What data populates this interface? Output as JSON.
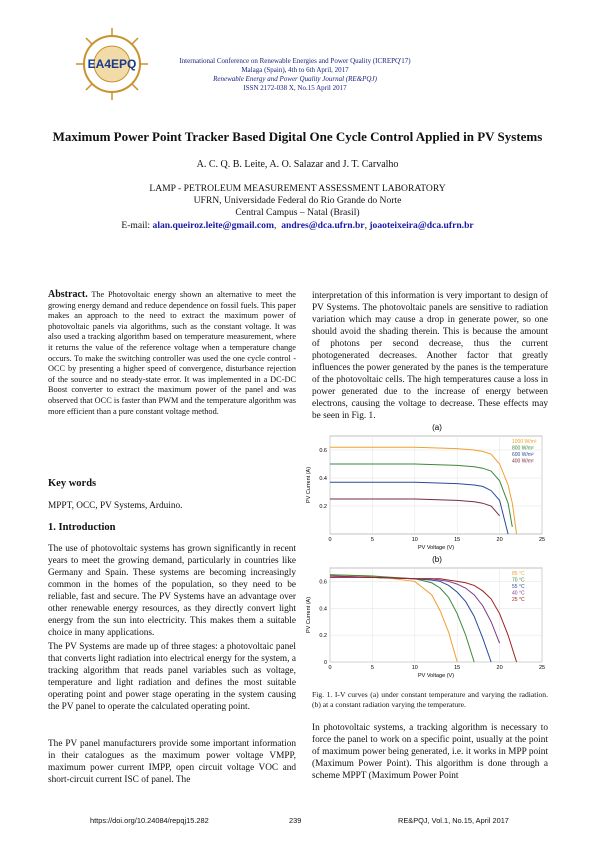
{
  "header": {
    "logo_text": "EA4EPQ",
    "conference": "International Conference on Renewable Energies and Power Quality (ICREPQ'17)",
    "place_date": "Malaga (Spain), 4th to 6th April, 2017",
    "journal": "Renewable Energy and Power Quality Journal (RE&PQJ)",
    "issn": "ISSN 2172-038 X, No.15 April 2017"
  },
  "title": "Maximum Power Point Tracker Based Digital One Cycle Control Applied in PV Systems",
  "authors": "A. C. Q. B. Leite, A. O. Salazar and J. T. Carvalho",
  "affiliation": [
    "LAMP - PETROLEUM MEASUREMENT ASSESSMENT LABORATORY",
    "UFRN, Universidade Federal do Rio Grande do Norte",
    "Central Campus – Natal (Brasil)"
  ],
  "email": {
    "label": "E-mail:",
    "addresses": [
      "alan.queiroz.leite@gmail.com",
      "andres@dca.ufrn.br",
      "joaoteixeira@dca.ufrn.br"
    ]
  },
  "abstract": {
    "label": "Abstract.",
    "text": "The Photovoltaic energy shown an alternative to meet the growing energy demand and reduce dependence on fossil fuels. This paper makes an approach to the need to extract the maximum power of photovoltaic panels via algorithms, such as the constant voltage. It was also used a tracking algorithm based on temperature measurement, where it returns the value of the reference voltage when a temperature change occurs. To make the switching controller was used the one cycle control - OCC by presenting a higher speed of convergence, disturbance rejection of the source and no steady-state error. It was implemented in a DC-DC Boost converter to extract the maximum power of the panel and was observed that OCC is faster than PWM and the temperature algorithm was more efficient than a pure constant voltage method."
  },
  "keywords": {
    "heading": "Key words",
    "text": "MPPT, OCC, PV Systems, Arduino."
  },
  "introduction": {
    "heading": "1.   Introduction",
    "paragraphs": [
      "The use of photovoltaic systems has grown significantly in recent years to meet the growing demand, particularly in countries like Germany and Spain. These systems are becoming increasingly common in the homes of the population, so they need to be reliable, fast and secure. The PV Systems have an advantage over other renewable energy resources, as they directly convert light energy from the sun into electricity. This makes them a suitable choice in many applications.",
      "The PV Systems are made up of three stages: a photovoltaic panel that converts light radiation into electrical energy for the system, a tracking algorithm that reads panel variables such as voltage, temperature and light radiation and defines the most suitable operating point and power stage operating in the system causing the PV panel to operate the calculated operating point.",
      "The PV panel manufacturers provide some important information in their catalogues as the maximum power voltage VMPP, maximum power current IMPP, open circuit voltage VOC and short-circuit current ISC of panel. The",
      "interpretation of this information is very important to design of PV Systems. The photovoltaic panels are sensitive to radiation variation which may cause a drop in generate power, so one should avoid the shading therein. This is because the amount of photons per second decrease, thus the current photogenerated decreases. Another factor that greatly influences the power generated by the panes is the temperature of the photovoltaic cells. The high temperatures cause a loss in power generated due to the increase of energy between electrons, causing the voltage to decrease. These effects may be seen in Fig. 1.",
      "In photovoltaic systems, a tracking algorithm is necessary to force the panel to work on a specific point, usually at the point of maximum power being generated, i.e. it works in MPP point (Maximum Power Point). This algorithm is done through a scheme MPPT (Maximum Power Point"
    ]
  },
  "figure_caption": "Fig. 1.  I-V curves (a) under constant temperature and varying the radiation. (b) at a constant radiation varying the temperature.",
  "chart_data": [
    {
      "type": "line",
      "panel_label": "(a)",
      "x_label": "PV Voltage (V)",
      "y_label": "PV Current (A)",
      "x": [
        0,
        5,
        10,
        15,
        17,
        18,
        19,
        20,
        21,
        21.5,
        22
      ],
      "series": [
        {
          "name": "1000 W/m²",
          "color": "#f0a030",
          "values": [
            0.62,
            0.62,
            0.62,
            0.61,
            0.6,
            0.59,
            0.57,
            0.5,
            0.35,
            0.22,
            0
          ]
        },
        {
          "name": "800 W/m²",
          "color": "#3a8a3a",
          "values": [
            0.5,
            0.5,
            0.5,
            0.49,
            0.48,
            0.47,
            0.45,
            0.38,
            0.22,
            0.05,
            null
          ]
        },
        {
          "name": "600 W/m²",
          "color": "#2a4a9a",
          "values": [
            0.37,
            0.37,
            0.37,
            0.36,
            0.35,
            0.34,
            0.31,
            0.24,
            0,
            null,
            null
          ]
        },
        {
          "name": "400 W/m²",
          "color": "#7a2a4a",
          "values": [
            0.25,
            0.25,
            0.25,
            0.24,
            0.23,
            0.22,
            0.2,
            0.13,
            null,
            null,
            null
          ]
        }
      ],
      "xlim": [
        0,
        25
      ],
      "xticks": [
        0,
        5,
        10,
        15,
        20,
        25
      ],
      "ylim": [
        0,
        0.7
      ],
      "yticks": [
        0.2,
        0.4,
        0.6
      ],
      "grid": true
    },
    {
      "type": "line",
      "panel_label": "(b)",
      "x_label": "PV Voltage (V)",
      "y_label": "PV Current (A)",
      "x": [
        0,
        5,
        10,
        12,
        13,
        14,
        15,
        16,
        17,
        18,
        19,
        20,
        21,
        22
      ],
      "series": [
        {
          "name": "85 °C",
          "color": "#f0a030",
          "values": [
            0.65,
            0.64,
            0.6,
            0.5,
            0.38,
            0.22,
            0,
            null,
            null,
            null,
            null,
            null,
            null,
            null
          ]
        },
        {
          "name": "70 °C",
          "color": "#3a8a3a",
          "values": [
            0.65,
            0.64,
            0.62,
            0.59,
            0.55,
            0.48,
            0.36,
            0.2,
            0,
            null,
            null,
            null,
            null,
            null
          ]
        },
        {
          "name": "55 °C",
          "color": "#2a4a9a",
          "values": [
            0.64,
            0.63,
            0.62,
            0.61,
            0.6,
            0.57,
            0.52,
            0.45,
            0.34,
            0.18,
            0,
            null,
            null,
            null
          ]
        },
        {
          "name": "40 °C",
          "color": "#7a3a8a",
          "values": [
            0.64,
            0.63,
            0.62,
            0.62,
            0.61,
            0.6,
            0.58,
            0.55,
            0.5,
            0.42,
            0.3,
            0.14,
            null,
            null
          ]
        },
        {
          "name": "25 °C",
          "color": "#a02020",
          "values": [
            0.63,
            0.63,
            0.62,
            0.62,
            0.62,
            0.61,
            0.6,
            0.59,
            0.57,
            0.53,
            0.47,
            0.36,
            0.2,
            0
          ]
        }
      ],
      "xlim": [
        0,
        25
      ],
      "xticks": [
        0,
        5,
        10,
        15,
        20,
        25
      ],
      "ylim": [
        0,
        0.7
      ],
      "yticks": [
        0,
        0.2,
        0.4,
        0.6
      ],
      "grid": true
    }
  ],
  "footer": {
    "doi": "https://doi.org/10.24084/repqj15.282",
    "page": "239",
    "journal": "RE&PQJ, Vol.1, No.15, April 2017"
  }
}
